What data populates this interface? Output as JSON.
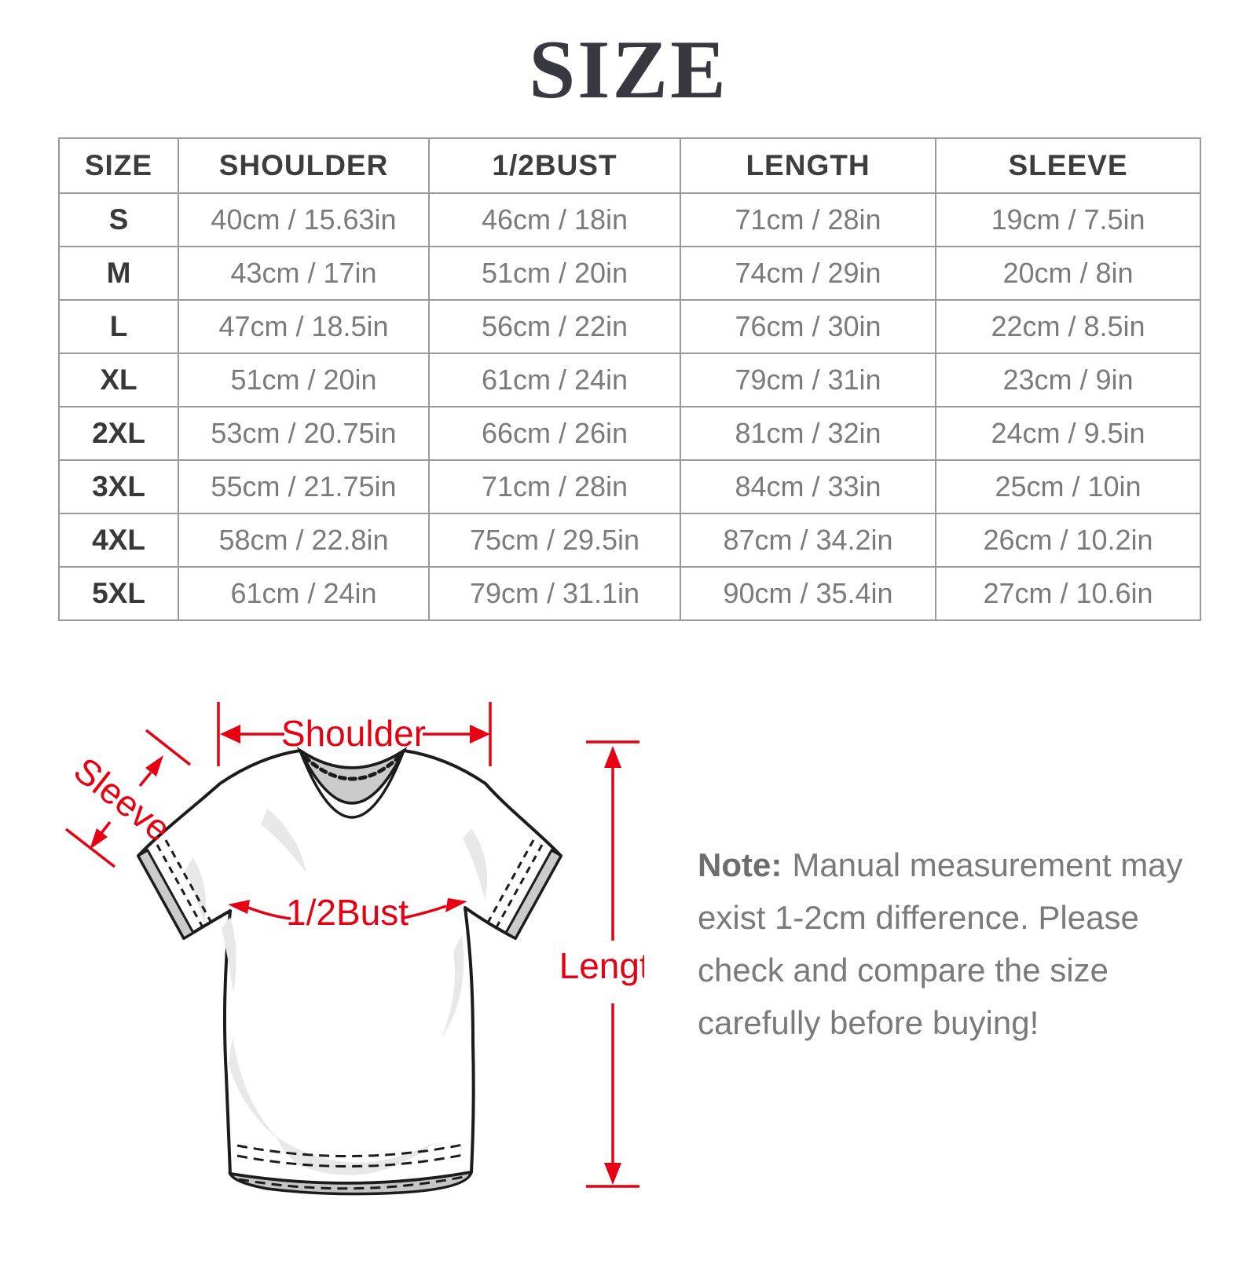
{
  "title": "SIZE",
  "accent_color": "#e60012",
  "table": {
    "headers": [
      "SIZE",
      "SHOULDER",
      "1/2BUST",
      "LENGTH",
      "SLEEVE"
    ],
    "rows": [
      [
        "S",
        "40cm / 15.63in",
        "46cm / 18in",
        "71cm / 28in",
        "19cm / 7.5in"
      ],
      [
        "M",
        "43cm / 17in",
        "51cm / 20in",
        "74cm / 29in",
        "20cm / 8in"
      ],
      [
        "L",
        "47cm / 18.5in",
        "56cm / 22in",
        "76cm / 30in",
        "22cm / 8.5in"
      ],
      [
        "XL",
        "51cm / 20in",
        "61cm / 24in",
        "79cm / 31in",
        "23cm / 9in"
      ],
      [
        "2XL",
        "53cm / 20.75in",
        "66cm / 26in",
        "81cm / 32in",
        "24cm / 9.5in"
      ],
      [
        "3XL",
        "55cm / 21.75in",
        "71cm / 28in",
        "84cm / 33in",
        "25cm / 10in"
      ],
      [
        "4XL",
        "58cm / 22.8in",
        "75cm / 29.5in",
        "87cm / 34.2in",
        "26cm / 10.2in"
      ],
      [
        "5XL",
        "61cm / 24in",
        "79cm / 31.1in",
        "90cm / 35.4in",
        "27cm / 10.6in"
      ]
    ]
  },
  "diagram": {
    "shoulder_label": "Shoulder",
    "sleeve_label": "Sleeve",
    "bust_label": "1/2Bust",
    "length_label": "Length"
  },
  "note": {
    "prefix": "Note:",
    "text": "Manual measurement may exist 1-2cm difference. Please check and compare the size carefully before buying!"
  }
}
